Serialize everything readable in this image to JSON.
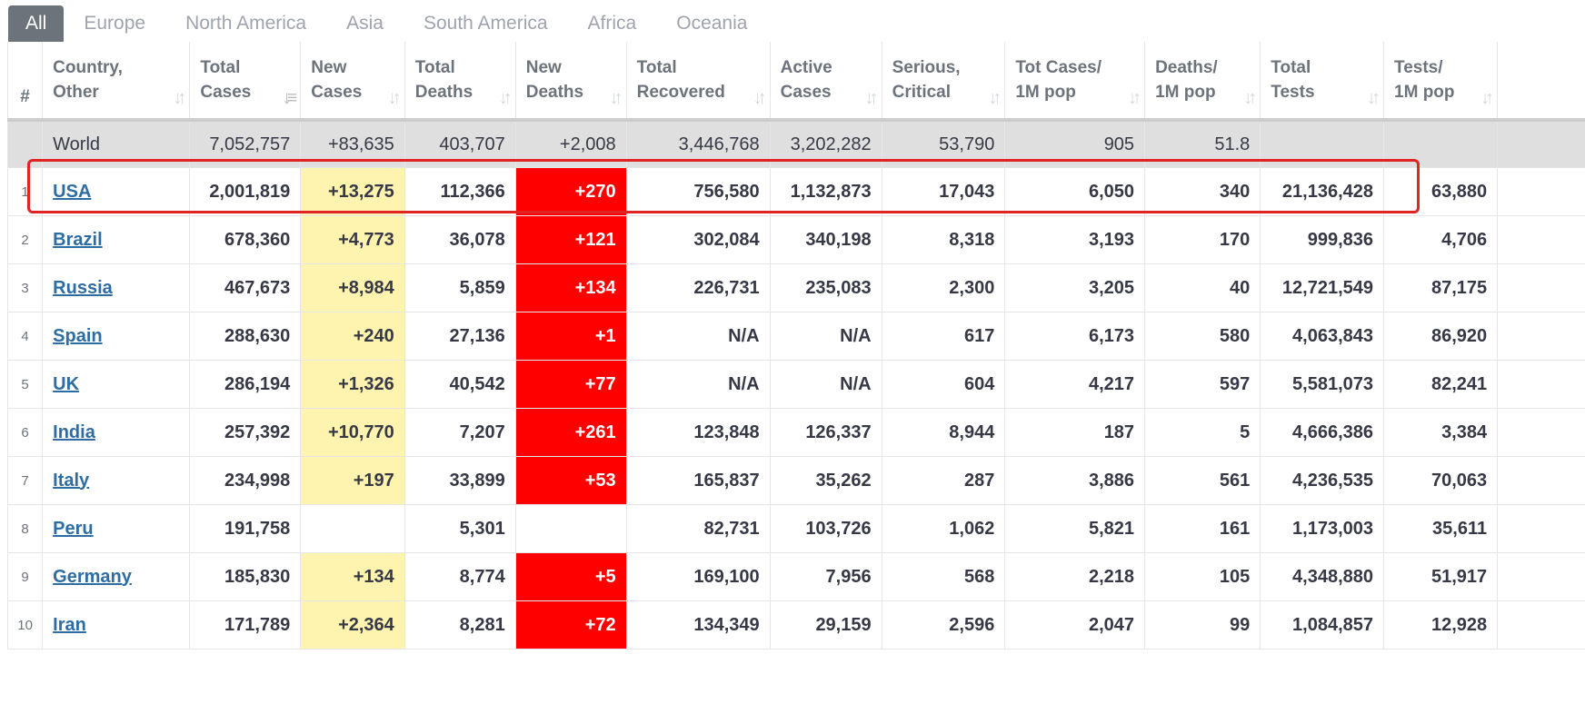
{
  "tabs": [
    "All",
    "Europe",
    "North America",
    "Asia",
    "South America",
    "Africa",
    "Oceania"
  ],
  "active_tab": "All",
  "columns": [
    {
      "line1": "#",
      "line2": ""
    },
    {
      "line1": "Country,",
      "line2": "Other"
    },
    {
      "line1": "Total",
      "line2": "Cases"
    },
    {
      "line1": "New",
      "line2": "Cases"
    },
    {
      "line1": "Total",
      "line2": "Deaths"
    },
    {
      "line1": "New",
      "line2": "Deaths"
    },
    {
      "line1": "Total",
      "line2": "Recovered"
    },
    {
      "line1": "Active",
      "line2": "Cases"
    },
    {
      "line1": "Serious,",
      "line2": "Critical"
    },
    {
      "line1": "Tot Cases/",
      "line2": "1M pop"
    },
    {
      "line1": "Deaths/",
      "line2": "1M pop"
    },
    {
      "line1": "Total",
      "line2": "Tests"
    },
    {
      "line1": "Tests/",
      "line2": "1M pop"
    }
  ],
  "world": {
    "country": "World",
    "total_cases": "7,052,757",
    "new_cases": "+83,635",
    "total_deaths": "403,707",
    "new_deaths": "+2,008",
    "total_recovered": "3,446,768",
    "active_cases": "3,202,282",
    "serious_critical": "53,790",
    "cases_per_1m": "905",
    "deaths_per_1m": "51.8",
    "total_tests": "",
    "tests_per_1m": ""
  },
  "rows": [
    {
      "rank": "1",
      "country": "USA",
      "total_cases": "2,001,819",
      "new_cases": "+13,275",
      "total_deaths": "112,366",
      "new_deaths": "+270",
      "total_recovered": "756,580",
      "active_cases": "1,132,873",
      "serious_critical": "17,043",
      "cases_per_1m": "6,050",
      "deaths_per_1m": "340",
      "total_tests": "21,136,428",
      "tests_per_1m": "63,880"
    },
    {
      "rank": "2",
      "country": "Brazil",
      "total_cases": "678,360",
      "new_cases": "+4,773",
      "total_deaths": "36,078",
      "new_deaths": "+121",
      "total_recovered": "302,084",
      "active_cases": "340,198",
      "serious_critical": "8,318",
      "cases_per_1m": "3,193",
      "deaths_per_1m": "170",
      "total_tests": "999,836",
      "tests_per_1m": "4,706"
    },
    {
      "rank": "3",
      "country": "Russia",
      "total_cases": "467,673",
      "new_cases": "+8,984",
      "total_deaths": "5,859",
      "new_deaths": "+134",
      "total_recovered": "226,731",
      "active_cases": "235,083",
      "serious_critical": "2,300",
      "cases_per_1m": "3,205",
      "deaths_per_1m": "40",
      "total_tests": "12,721,549",
      "tests_per_1m": "87,175"
    },
    {
      "rank": "4",
      "country": "Spain",
      "total_cases": "288,630",
      "new_cases": "+240",
      "total_deaths": "27,136",
      "new_deaths": "+1",
      "total_recovered": "N/A",
      "active_cases": "N/A",
      "serious_critical": "617",
      "cases_per_1m": "6,173",
      "deaths_per_1m": "580",
      "total_tests": "4,063,843",
      "tests_per_1m": "86,920"
    },
    {
      "rank": "5",
      "country": "UK",
      "total_cases": "286,194",
      "new_cases": "+1,326",
      "total_deaths": "40,542",
      "new_deaths": "+77",
      "total_recovered": "N/A",
      "active_cases": "N/A",
      "serious_critical": "604",
      "cases_per_1m": "4,217",
      "deaths_per_1m": "597",
      "total_tests": "5,581,073",
      "tests_per_1m": "82,241"
    },
    {
      "rank": "6",
      "country": "India",
      "total_cases": "257,392",
      "new_cases": "+10,770",
      "total_deaths": "7,207",
      "new_deaths": "+261",
      "total_recovered": "123,848",
      "active_cases": "126,337",
      "serious_critical": "8,944",
      "cases_per_1m": "187",
      "deaths_per_1m": "5",
      "total_tests": "4,666,386",
      "tests_per_1m": "3,384"
    },
    {
      "rank": "7",
      "country": "Italy",
      "total_cases": "234,998",
      "new_cases": "+197",
      "total_deaths": "33,899",
      "new_deaths": "+53",
      "total_recovered": "165,837",
      "active_cases": "35,262",
      "serious_critical": "287",
      "cases_per_1m": "3,886",
      "deaths_per_1m": "561",
      "total_tests": "4,236,535",
      "tests_per_1m": "70,063"
    },
    {
      "rank": "8",
      "country": "Peru",
      "total_cases": "191,758",
      "new_cases": "",
      "total_deaths": "5,301",
      "new_deaths": "",
      "total_recovered": "82,731",
      "active_cases": "103,726",
      "serious_critical": "1,062",
      "cases_per_1m": "5,821",
      "deaths_per_1m": "161",
      "total_tests": "1,173,003",
      "tests_per_1m": "35,611"
    },
    {
      "rank": "9",
      "country": "Germany",
      "total_cases": "185,830",
      "new_cases": "+134",
      "total_deaths": "8,774",
      "new_deaths": "+5",
      "total_recovered": "169,100",
      "active_cases": "7,956",
      "serious_critical": "568",
      "cases_per_1m": "2,218",
      "deaths_per_1m": "105",
      "total_tests": "4,348,880",
      "tests_per_1m": "51,917"
    },
    {
      "rank": "10",
      "country": "Iran",
      "total_cases": "171,789",
      "new_cases": "+2,364",
      "total_deaths": "8,281",
      "new_deaths": "+72",
      "total_recovered": "134,349",
      "active_cases": "29,159",
      "serious_critical": "2,596",
      "cases_per_1m": "2,047",
      "deaths_per_1m": "99",
      "total_tests": "1,084,857",
      "tests_per_1m": "12,928"
    }
  ],
  "highlighted_row": "USA",
  "colors": {
    "new_cases_bg": "#fff3b0",
    "new_deaths_bg": "#ff0000",
    "link": "#2e6ca4",
    "highlight_box": "#e02424"
  }
}
